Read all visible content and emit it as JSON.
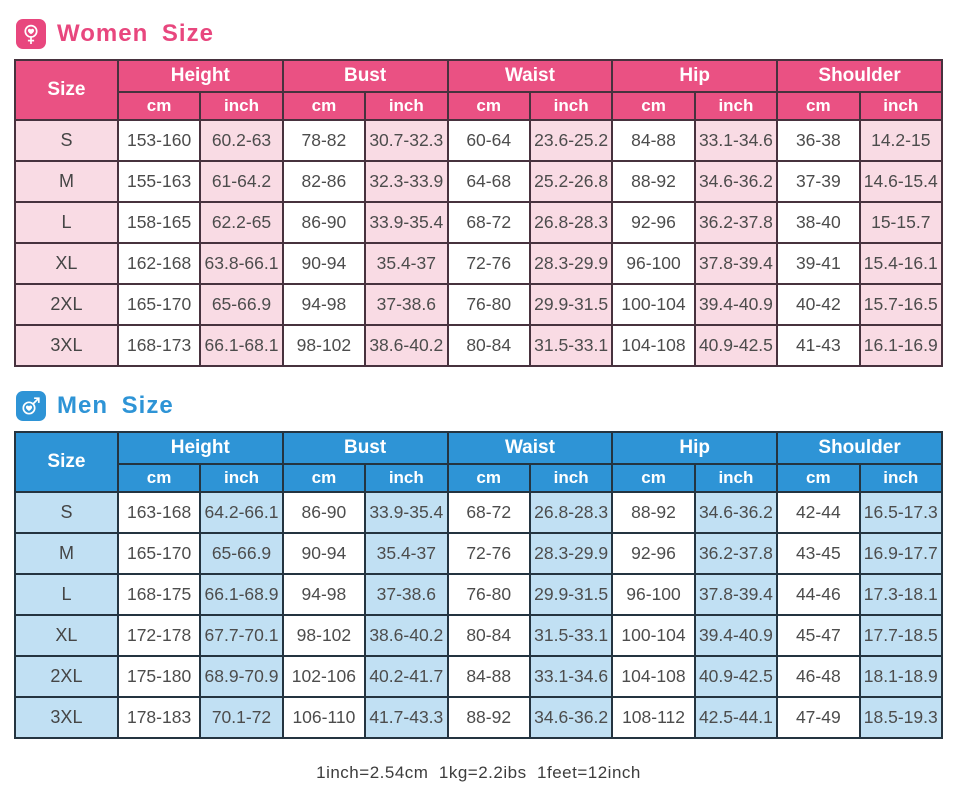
{
  "women": {
    "title": "Women  Size",
    "size_header": "Size",
    "groups": [
      "Height",
      "Bust",
      "Waist",
      "Hip",
      "Shoulder"
    ],
    "units": [
      "cm",
      "inch"
    ],
    "colors": {
      "accent": "#e8477e",
      "header_bg": "#ea5183",
      "tint": "#f9dbe4",
      "border": "#47323e"
    },
    "rows": [
      {
        "size": "S",
        "values": [
          "153-160",
          "60.2-63",
          "78-82",
          "30.7-32.3",
          "60-64",
          "23.6-25.2",
          "84-88",
          "33.1-34.6",
          "36-38",
          "14.2-15"
        ]
      },
      {
        "size": "M",
        "values": [
          "155-163",
          "61-64.2",
          "82-86",
          "32.3-33.9",
          "64-68",
          "25.2-26.8",
          "88-92",
          "34.6-36.2",
          "37-39",
          "14.6-15.4"
        ]
      },
      {
        "size": "L",
        "values": [
          "158-165",
          "62.2-65",
          "86-90",
          "33.9-35.4",
          "68-72",
          "26.8-28.3",
          "92-96",
          "36.2-37.8",
          "38-40",
          "15-15.7"
        ]
      },
      {
        "size": "XL",
        "values": [
          "162-168",
          "63.8-66.1",
          "90-94",
          "35.4-37",
          "72-76",
          "28.3-29.9",
          "96-100",
          "37.8-39.4",
          "39-41",
          "15.4-16.1"
        ]
      },
      {
        "size": "2XL",
        "values": [
          "165-170",
          "65-66.9",
          "94-98",
          "37-38.6",
          "76-80",
          "29.9-31.5",
          "100-104",
          "39.4-40.9",
          "40-42",
          "15.7-16.5"
        ]
      },
      {
        "size": "3XL",
        "values": [
          "168-173",
          "66.1-68.1",
          "98-102",
          "38.6-40.2",
          "80-84",
          "31.5-33.1",
          "104-108",
          "40.9-42.5",
          "41-43",
          "16.1-16.9"
        ]
      }
    ]
  },
  "men": {
    "title": "Men  Size",
    "size_header": "Size",
    "groups": [
      "Height",
      "Bust",
      "Waist",
      "Hip",
      "Shoulder"
    ],
    "units": [
      "cm",
      "inch"
    ],
    "colors": {
      "accent": "#2e94d6",
      "header_bg": "#2e94d6",
      "tint": "#c1e0f3",
      "border": "#243440"
    },
    "rows": [
      {
        "size": "S",
        "values": [
          "163-168",
          "64.2-66.1",
          "86-90",
          "33.9-35.4",
          "68-72",
          "26.8-28.3",
          "88-92",
          "34.6-36.2",
          "42-44",
          "16.5-17.3"
        ]
      },
      {
        "size": "M",
        "values": [
          "165-170",
          "65-66.9",
          "90-94",
          "35.4-37",
          "72-76",
          "28.3-29.9",
          "92-96",
          "36.2-37.8",
          "43-45",
          "16.9-17.7"
        ]
      },
      {
        "size": "L",
        "values": [
          "168-175",
          "66.1-68.9",
          "94-98",
          "37-38.6",
          "76-80",
          "29.9-31.5",
          "96-100",
          "37.8-39.4",
          "44-46",
          "17.3-18.1"
        ]
      },
      {
        "size": "XL",
        "values": [
          "172-178",
          "67.7-70.1",
          "98-102",
          "38.6-40.2",
          "80-84",
          "31.5-33.1",
          "100-104",
          "39.4-40.9",
          "45-47",
          "17.7-18.5"
        ]
      },
      {
        "size": "2XL",
        "values": [
          "175-180",
          "68.9-70.9",
          "102-106",
          "40.2-41.7",
          "84-88",
          "33.1-34.6",
          "104-108",
          "40.9-42.5",
          "46-48",
          "18.1-18.9"
        ]
      },
      {
        "size": "3XL",
        "values": [
          "178-183",
          "70.1-72",
          "106-110",
          "41.7-43.3",
          "88-92",
          "34.6-36.2",
          "108-112",
          "42.5-44.1",
          "47-49",
          "18.5-19.3"
        ]
      }
    ]
  },
  "footer": {
    "note": "1inch=2.54cm  1kg=2.2ibs  1feet=12inch"
  }
}
